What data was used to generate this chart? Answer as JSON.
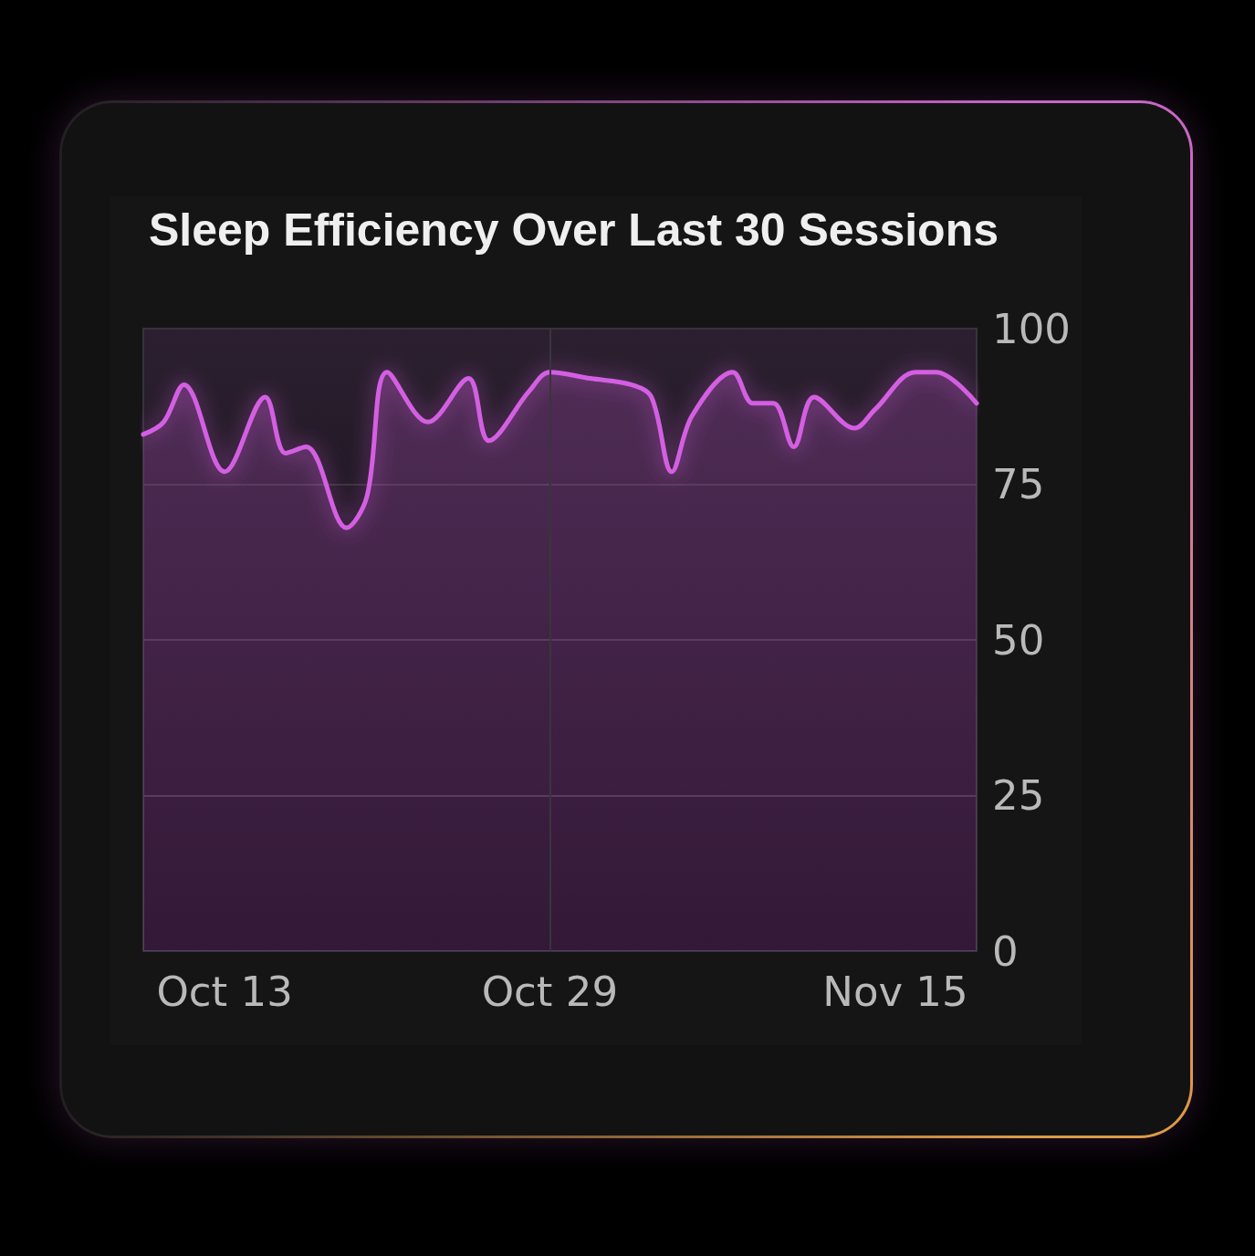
{
  "chart_data": {
    "type": "area",
    "title": "Sleep Efficiency Over Last 30 Sessions",
    "x": [
      "--10-09",
      "--10-10",
      "--10-11",
      "--10-13",
      "--10-15",
      "--10-16",
      "--10-17",
      "--10-19",
      "--10-20",
      "--10-21",
      "--10-23",
      "--10-25",
      "--10-26",
      "--10-28",
      "--10-29",
      "--10-31",
      "--11-02",
      "--11-03",
      "--11-04",
      "--11-05",
      "--11-07",
      "--11-08",
      "--11-09",
      "--11-10",
      "--11-11",
      "--11-13",
      "--11-14",
      "--11-16",
      "--11-17",
      "--11-19"
    ],
    "values": [
      83,
      85,
      91,
      77,
      89,
      80,
      81,
      68,
      73,
      93,
      85,
      92,
      82,
      90,
      93,
      92,
      91,
      89,
      77,
      86,
      93,
      88,
      88,
      81,
      89,
      84,
      87,
      93,
      93,
      88
    ],
    "color": "#d45fe2",
    "xlim": [
      "--10-09",
      "--11-19"
    ],
    "xticks": [
      {
        "value": "--10-13",
        "label": "Oct 13"
      },
      {
        "value": "--10-29",
        "label": "Oct 29"
      },
      {
        "value": "--11-15",
        "label": "Nov 15"
      }
    ],
    "ylim": [
      0,
      100
    ],
    "yticks": [
      0,
      25,
      50,
      75,
      100
    ],
    "grid": "y",
    "ref_lines": [
      {
        "axis": "x",
        "value": "--10-29",
        "label": null,
        "color": "#3a343e"
      }
    ]
  }
}
